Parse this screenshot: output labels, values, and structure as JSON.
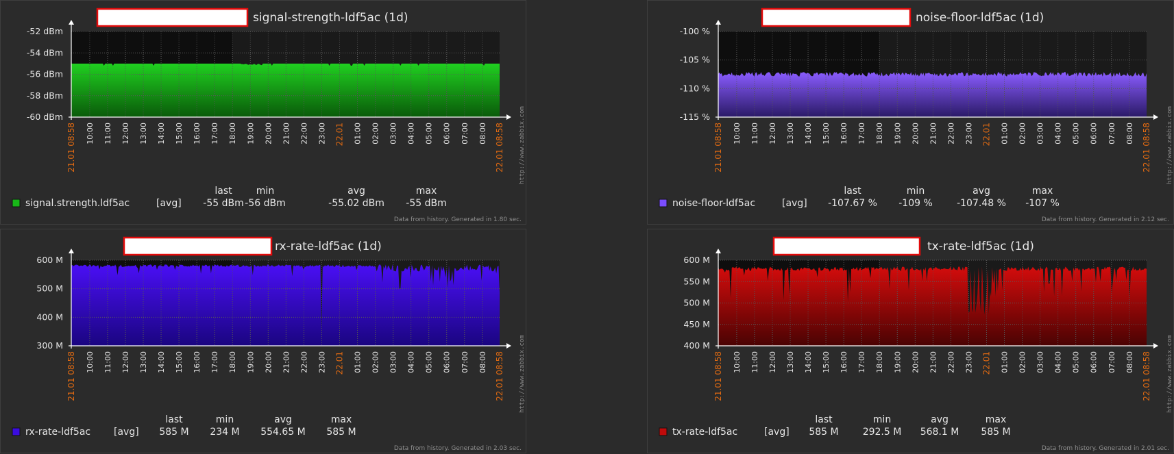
{
  "charts": [
    {
      "id": "signal",
      "title": "signal-strength-ldf5ac (1d)",
      "type": "area",
      "y_unit": "dBm",
      "y_ticks": [
        "-52 dBm",
        "-54 dBm",
        "-56 dBm",
        "-58 dBm",
        "-60 dBm"
      ],
      "ylim": [
        -60,
        -52
      ],
      "colors": {
        "top": "#20d020",
        "bottom": "#0a5a0a",
        "legend": "#18b818"
      },
      "baseline_value": -55,
      "legend": {
        "name": "signal.strength.ldf5ac",
        "func": "[avg]",
        "headers": [
          "last",
          "min",
          "avg",
          "max"
        ],
        "values": [
          "-55 dBm",
          "-56 dBm",
          "-55.02 dBm",
          "-55 dBm"
        ]
      },
      "footer": "Data from history. Generated in 1.80 sec."
    },
    {
      "id": "noise",
      "title": "noise-floor-ldf5ac (1d)",
      "type": "area",
      "y_unit": "%",
      "y_ticks": [
        "-100 %",
        "-105 %",
        "-110 %",
        "-115 %"
      ],
      "ylim": [
        -115,
        -100
      ],
      "colors": {
        "top": "#8a5cff",
        "bottom": "#2a1a66",
        "legend": "#7a4dff"
      },
      "baseline_value": -107.48,
      "legend": {
        "name": "noise-floor-ldf5ac",
        "func": "[avg]",
        "headers": [
          "last",
          "min",
          "avg",
          "max"
        ],
        "values": [
          "-107.67 %",
          "-109 %",
          "-107.48 %",
          "-107 %"
        ]
      },
      "footer": "Data from history. Generated in 2.12 sec."
    },
    {
      "id": "rx",
      "title": "rx-rate-ldf5ac (1d)",
      "type": "area",
      "y_unit": "M",
      "y_ticks": [
        "600 M",
        "500 M",
        "400 M",
        "300 M"
      ],
      "ylim": [
        300,
        600
      ],
      "colors": {
        "top": "#4a0ff5",
        "bottom": "#1a0580",
        "legend": "#3a0ce0"
      },
      "baseline_value": 585,
      "legend": {
        "name": "rx-rate-ldf5ac",
        "func": "[avg]",
        "headers": [
          "last",
          "min",
          "avg",
          "max"
        ],
        "values": [
          "585 M",
          "234 M",
          "554.65 M",
          "585 M"
        ]
      },
      "footer": "Data from history. Generated in 2.03 sec."
    },
    {
      "id": "tx",
      "title": "tx-rate-ldf5ac (1d)",
      "type": "area",
      "y_unit": "M",
      "y_ticks": [
        "600 M",
        "550 M",
        "500 M",
        "450 M",
        "400 M"
      ],
      "ylim": [
        400,
        600
      ],
      "colors": {
        "top": "#d40c0c",
        "bottom": "#4a0303",
        "legend": "#c00b0b"
      },
      "baseline_value": 585,
      "legend": {
        "name": "tx-rate-ldf5ac",
        "func": "[avg]",
        "headers": [
          "last",
          "min",
          "avg",
          "max"
        ],
        "values": [
          "585 M",
          "292.5 M",
          "568.1 M",
          "585 M"
        ]
      },
      "footer": "Data from history. Generated in 2.01 sec."
    }
  ],
  "x_ticks": [
    "21.01 08:58",
    "10:00",
    "11:00",
    "12:00",
    "13:00",
    "14:00",
    "15:00",
    "16:00",
    "17:00",
    "18:00",
    "19:00",
    "20:00",
    "21:00",
    "22:00",
    "23:00",
    "22.01",
    "01:00",
    "02:00",
    "03:00",
    "04:00",
    "05:00",
    "06:00",
    "07:00",
    "08:00",
    "22.01 08:58"
  ],
  "x_highlight": [
    "21.01 08:58",
    "22.01",
    "22.01 08:58"
  ],
  "watermark": "http://www.zabbix.com"
}
